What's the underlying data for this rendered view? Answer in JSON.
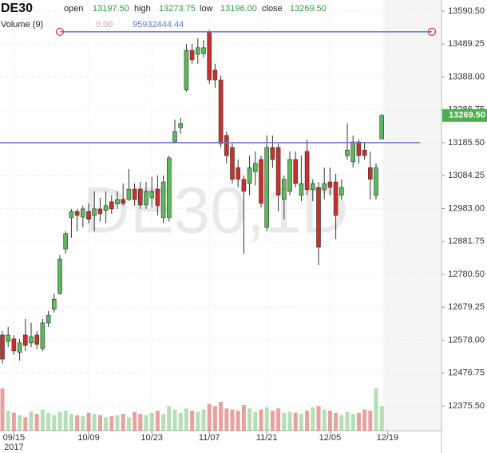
{
  "header": {
    "symbol": "DE30",
    "fields": [
      {
        "name": "open",
        "value": {
          "value": 13197.5,
          "label": "13197.50"
        }
      },
      {
        "name": "high",
        "value": {
          "value": 13273.75,
          "label": "13273.75"
        }
      },
      {
        "name": "low",
        "value": {
          "value": 13196,
          "label": "13196.00"
        }
      },
      {
        "name": "close",
        "value": {
          "value": 13269.5,
          "label": "13269.50"
        }
      }
    ],
    "volume_name": "Volume (9)",
    "volume_values": [
      {
        "value": 0,
        "label": "0.00"
      },
      95932444.44
    ]
  },
  "chart_data": {
    "type": "candlestick",
    "watermark": "DE30,1D",
    "year_label": "2017",
    "categories": [
      null,
      null,
      "09/15",
      null,
      null,
      null,
      null,
      null,
      null,
      null,
      null,
      null,
      null,
      null,
      null,
      "10/09",
      null,
      null,
      null,
      null,
      null,
      null,
      null,
      null,
      null,
      null,
      "10/23",
      null,
      null,
      null,
      null,
      null,
      null,
      null,
      null,
      null,
      "11/07",
      null,
      null,
      null,
      null,
      null,
      null,
      null,
      null,
      null,
      "11/21",
      null,
      null,
      null,
      null,
      null,
      null,
      null,
      null,
      null,
      null,
      "12/05",
      null,
      null,
      null,
      null,
      null,
      null,
      null,
      null,
      null,
      "12/19"
    ],
    "open": [
      12594,
      12574,
      12582,
      12540,
      12594,
      12570,
      12594,
      12552,
      12631,
      12673,
      12722,
      12859,
      12955,
      12974,
      12957,
      12974,
      12962,
      12982,
      12977,
      13004,
      12997,
      13011,
      13011,
      13043,
      13043,
      12994,
      13016,
      13043,
      12955,
      12955,
      13188,
      13232,
      13348,
      13470,
      13458,
      13460,
      13527,
      13409,
      13379,
      13208,
      13171,
      13109,
      13073,
      13060,
      13097,
      13134,
      12925,
      13171,
      13171,
      13011,
      13036,
      13134,
      13024,
      13159,
      13041,
      13048,
      13041,
      13065,
      13065,
      13024,
      13146,
      13127,
      13188,
      13163,
      13109,
      13024,
      13197.5,
      null
    ],
    "high": [
      12606,
      12619,
      12594,
      12582,
      12643,
      12631,
      12606,
      12643,
      12668,
      12722,
      12840,
      12913,
      12982,
      12982,
      12992,
      12999,
      13036,
      13016,
      13036,
      13024,
      13036,
      13060,
      13105,
      13060,
      13065,
      13065,
      13080,
      13085,
      13085,
      13146,
      13257,
      13262,
      13490,
      13490,
      13507,
      13502,
      13532,
      13429,
      13392,
      13220,
      13183,
      13134,
      13085,
      13146,
      13159,
      13146,
      13208,
      13208,
      13183,
      13085,
      13159,
      13159,
      13146,
      13195,
      13073,
      13065,
      13109,
      13109,
      13090,
      13073,
      13245,
      13208,
      13195,
      13188,
      13159,
      13122,
      13273.75,
      null
    ],
    "low": [
      12506,
      12557,
      12533,
      12515,
      12545,
      12557,
      12550,
      12545,
      12619,
      12663,
      12717,
      12844,
      12893,
      12913,
      12925,
      12938,
      12913,
      12943,
      12938,
      12967,
      12982,
      12992,
      13006,
      12992,
      12982,
      12982,
      12987,
      12962,
      12938,
      12943,
      13183,
      13213,
      13343,
      13429,
      13429,
      13448,
      13367,
      13355,
      13171,
      13122,
      13060,
      13048,
      12844,
      13024,
      13055,
      12987,
      12913,
      13109,
      12974,
      12950,
      13024,
      13048,
      13006,
      13024,
      13006,
      12810,
      13011,
      13024,
      12889,
      13011,
      13134,
      13109,
      13122,
      13134,
      13011,
      13011,
      13196,
      null
    ],
    "close": [
      12520,
      12594,
      12545,
      12570,
      12562,
      12589,
      12565,
      12631,
      12655,
      12704,
      12827,
      12906,
      12974,
      12962,
      12982,
      12950,
      12982,
      12967,
      12992,
      12982,
      13011,
      12999,
      13043,
      13011,
      12994,
      13036,
      13036,
      12992,
      13065,
      13139,
      13220,
      13245,
      13470,
      13441,
      13478,
      13478,
      13379,
      13379,
      13183,
      13146,
      13073,
      13073,
      13036,
      13109,
      13122,
      12999,
      13171,
      13134,
      13024,
      13073,
      13134,
      13060,
      13060,
      13041,
      13060,
      12864,
      13060,
      13048,
      12962,
      13048,
      13163,
      13188,
      13146,
      13146,
      13073,
      13109,
      13269.5,
      null
    ],
    "volume": [
      190000000,
      90000000,
      80000000,
      70000000,
      60000000,
      85000000,
      75000000,
      95000000,
      80000000,
      70000000,
      85000000,
      90000000,
      75000000,
      70000000,
      65000000,
      80000000,
      75000000,
      70000000,
      60000000,
      65000000,
      70000000,
      75000000,
      60000000,
      85000000,
      75000000,
      70000000,
      80000000,
      90000000,
      75000000,
      110000000,
      95000000,
      80000000,
      100000000,
      90000000,
      85000000,
      95000000,
      120000000,
      110000000,
      130000000,
      100000000,
      95000000,
      90000000,
      115000000,
      100000000,
      85000000,
      95000000,
      105000000,
      90000000,
      100000000,
      80000000,
      85000000,
      80000000,
      75000000,
      90000000,
      105000000,
      110000000,
      95000000,
      90000000,
      80000000,
      70000000,
      85000000,
      75000000,
      80000000,
      95000000,
      90000000,
      190000000,
      110000000,
      null
    ],
    "up_color": "#5cb85c",
    "down_color": "#c9302c",
    "line_color": "#6f74c9",
    "hlines": [
      13527,
      13186
    ],
    "last_price": {
      "value": 13269.5,
      "label": "13269.50"
    },
    "ylim": [
      12299.5,
      13624.9
    ],
    "yticks": [
      {
        "value": 13590.5,
        "label": "13590.50"
      },
      13489.25,
      {
        "value": 13388,
        "label": "13388.00"
      },
      13286.75,
      {
        "value": 13185.5,
        "label": "13185.50"
      },
      13084.25,
      {
        "value": 12983,
        "label": "12983.00"
      },
      12881.75,
      {
        "value": 12780.5,
        "label": "12780.50"
      },
      12679.25,
      {
        "value": 12578,
        "label": "12578.00"
      },
      12476.75,
      {
        "value": 12375.5,
        "label": "12375.50"
      }
    ],
    "grid": true
  }
}
